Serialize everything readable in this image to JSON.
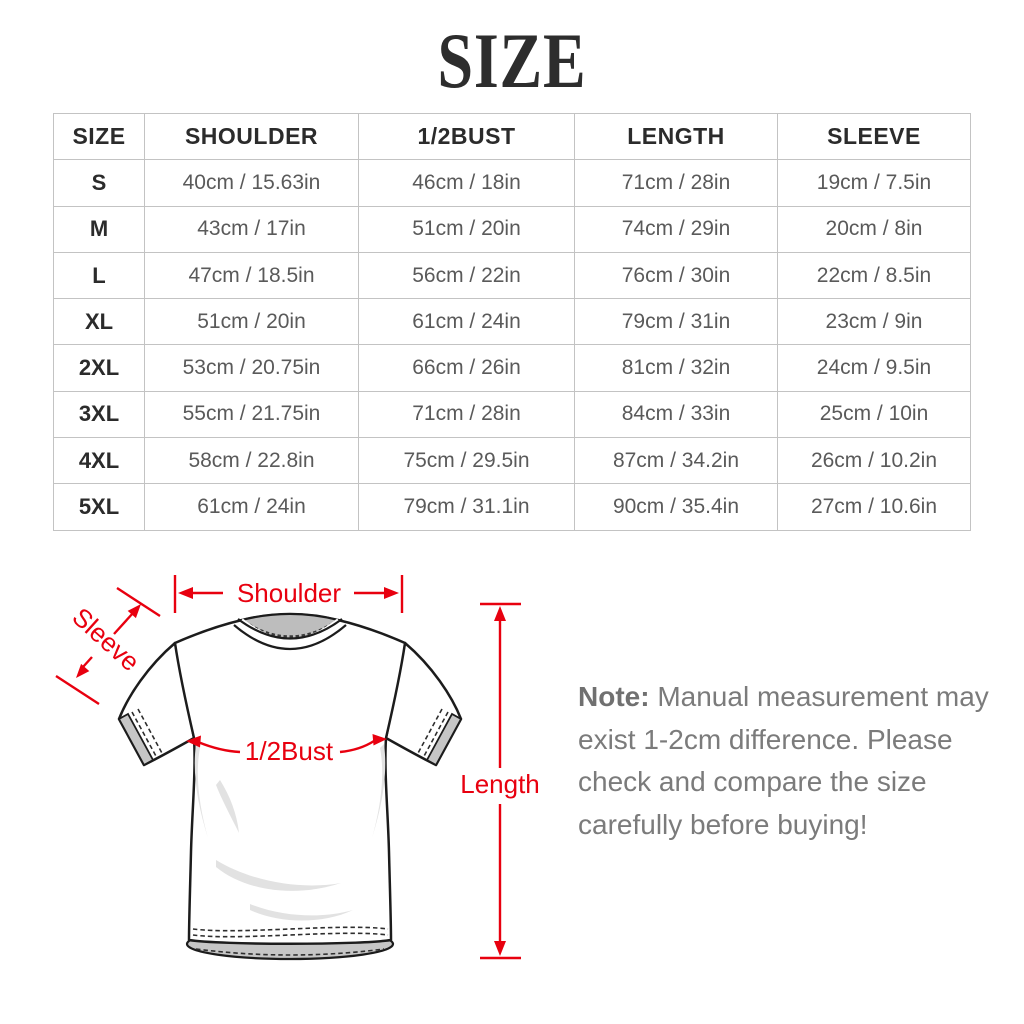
{
  "title": "SIZE",
  "table": {
    "headers": [
      "SIZE",
      "SHOULDER",
      "1/2BUST",
      "LENGTH",
      "SLEEVE"
    ],
    "rows": [
      [
        "S",
        "40cm / 15.63in",
        "46cm / 18in",
        "71cm / 28in",
        "19cm / 7.5in"
      ],
      [
        "M",
        "43cm / 17in",
        "51cm / 20in",
        "74cm / 29in",
        "20cm / 8in"
      ],
      [
        "L",
        "47cm / 18.5in",
        "56cm / 22in",
        "76cm / 30in",
        "22cm / 8.5in"
      ],
      [
        "XL",
        "51cm / 20in",
        "61cm / 24in",
        "79cm / 31in",
        "23cm / 9in"
      ],
      [
        "2XL",
        "53cm / 20.75in",
        "66cm / 26in",
        "81cm / 32in",
        "24cm / 9.5in"
      ],
      [
        "3XL",
        "55cm / 21.75in",
        "71cm / 28in",
        "84cm / 33in",
        "25cm / 10in"
      ],
      [
        "4XL",
        "58cm / 22.8in",
        "75cm / 29.5in",
        "87cm / 34.2in",
        "26cm / 10.2in"
      ],
      [
        "5XL",
        "61cm / 24in",
        "79cm / 31.1in",
        "90cm / 35.4in",
        "27cm / 10.6in"
      ]
    ]
  },
  "diagram": {
    "labels": {
      "shoulder": "Shoulder",
      "sleeve": "Sleeve",
      "bust": "1/2Bust",
      "length": "Length"
    },
    "accent_color": "#e8000f"
  },
  "note": {
    "label": "Note:",
    "lines": [
      "Manual measurement may",
      "exist 1-2cm difference. Please",
      "check and compare the size",
      "carefully before buying!"
    ]
  }
}
